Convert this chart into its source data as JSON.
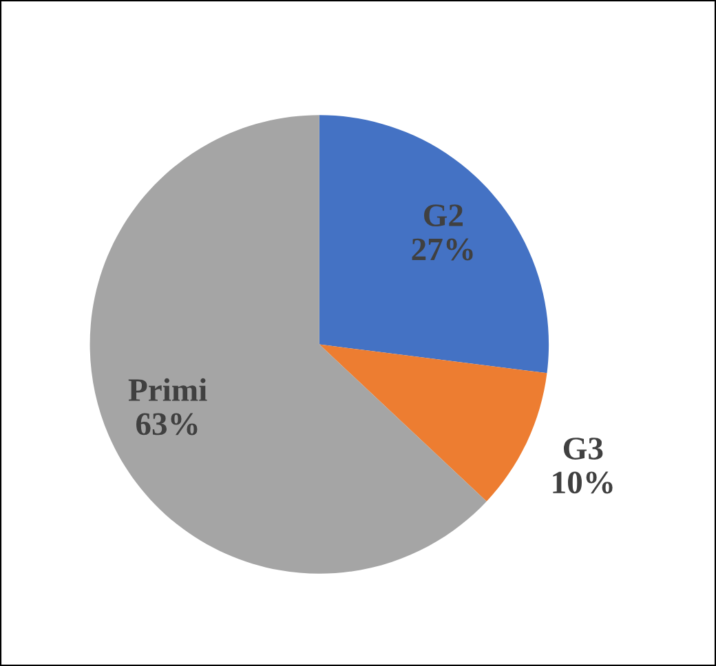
{
  "chart_data": {
    "type": "pie",
    "categories": [
      "G2",
      "G3",
      "Primi"
    ],
    "values": [
      27,
      10,
      63
    ],
    "colors": [
      "#4472c4",
      "#ed7d31",
      "#a5a5a5"
    ],
    "value_labels": [
      "27%",
      "10%",
      "63%"
    ]
  }
}
